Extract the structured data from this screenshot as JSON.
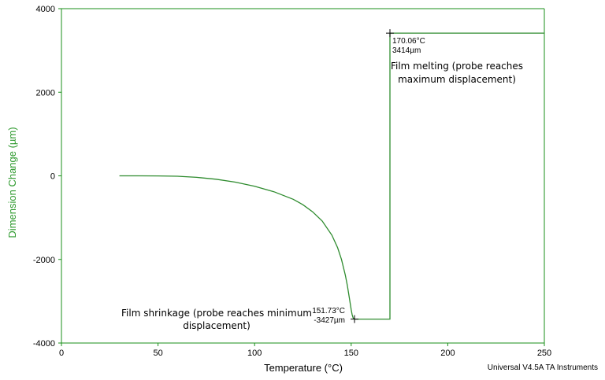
{
  "chart_data": {
    "type": "line",
    "xlabel": "Temperature (°C)",
    "ylabel": "Dimension Change (µm)",
    "xlim": [
      0,
      250
    ],
    "ylim": [
      -4000,
      4000
    ],
    "x_ticks": [
      0,
      50,
      100,
      150,
      200,
      250
    ],
    "y_ticks": [
      4000,
      2000,
      0,
      -2000,
      -4000
    ],
    "x_tick_labels": [
      "0",
      "50",
      "100",
      "150",
      "200",
      "250"
    ],
    "y_tick_labels": [
      "4000",
      "2000",
      "0",
      "-2000",
      "-4000"
    ],
    "grid": false,
    "series": [
      {
        "x": [
          30,
          40,
          50,
          60,
          70,
          80,
          90,
          100,
          110,
          120,
          125,
          130,
          135,
          140,
          143,
          145,
          147,
          148,
          149,
          150,
          150.5,
          151,
          151.73,
          155,
          160,
          165,
          170.06,
          170.06,
          180,
          200,
          220,
          250
        ],
        "y": [
          0,
          0,
          -2,
          -10,
          -35,
          -80,
          -150,
          -250,
          -380,
          -560,
          -690,
          -860,
          -1080,
          -1420,
          -1720,
          -2000,
          -2380,
          -2620,
          -2900,
          -3200,
          -3320,
          -3400,
          -3427,
          -3427,
          -3427,
          -3427,
          -3427,
          3414,
          3414,
          3414,
          3414,
          3414
        ]
      }
    ],
    "markers": [
      {
        "x": 151.73,
        "y": -3427,
        "line1": "151.73°C",
        "line2": "-3427µm"
      },
      {
        "x": 170.06,
        "y": 3414,
        "line1": "170.06°C",
        "line2": "3414µm"
      }
    ],
    "annotations": [
      {
        "lines": [
          "Film shrinkage (probe reaches minimum",
          "displacement)"
        ]
      },
      {
        "lines": [
          "Film melting (probe reaches",
          "maximum displacement)"
        ]
      }
    ],
    "footer": "Universal V4.5A TA Instruments"
  },
  "colors": {
    "series": "#2e8b2e",
    "axis": "#1a8f1a",
    "ylabel": "#2e9a2e",
    "text": "#000000"
  }
}
